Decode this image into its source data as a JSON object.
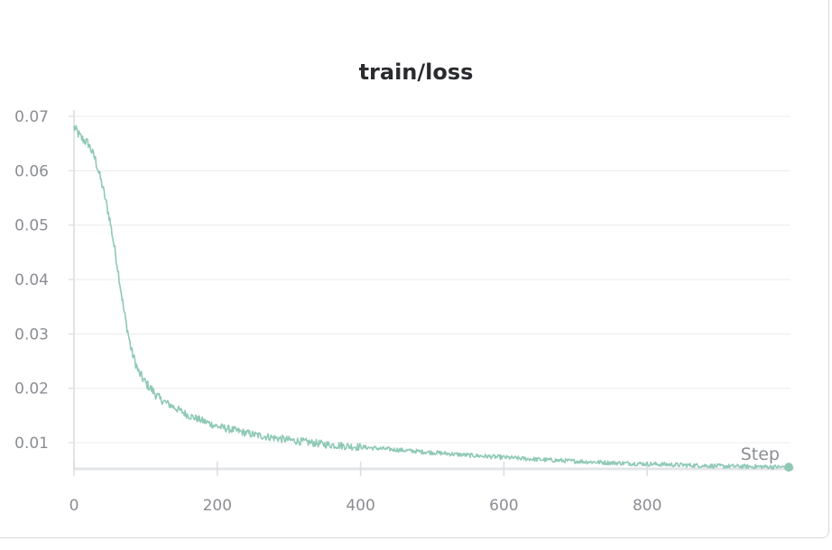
{
  "panel": {
    "title": "train/loss"
  },
  "chart_data": {
    "type": "line",
    "title": "train/loss",
    "xlabel": "Step",
    "ylabel": "",
    "xlim": [
      0,
      1000
    ],
    "ylim": [
      0.005,
      0.07
    ],
    "x_ticks": [
      0,
      200,
      400,
      600,
      800
    ],
    "x_tick_labels": [
      "0",
      "200",
      "400",
      "600",
      "800"
    ],
    "y_ticks": [
      0.01,
      0.02,
      0.03,
      0.04,
      0.05,
      0.06,
      0.07
    ],
    "y_tick_labels": [
      "0.01",
      "0.02",
      "0.03",
      "0.04",
      "0.05",
      "0.06",
      "0.07"
    ],
    "grid": true,
    "series": [
      {
        "color": "#8fc9b6",
        "x": [
          0,
          10,
          20,
          30,
          40,
          50,
          60,
          70,
          80,
          90,
          100,
          120,
          140,
          160,
          180,
          200,
          250,
          300,
          350,
          400,
          450,
          500,
          550,
          600,
          650,
          700,
          750,
          800,
          850,
          900,
          950,
          1000
        ],
        "y": [
          0.068,
          0.066,
          0.065,
          0.062,
          0.057,
          0.051,
          0.043,
          0.034,
          0.027,
          0.023,
          0.021,
          0.018,
          0.0165,
          0.015,
          0.014,
          0.013,
          0.0115,
          0.0105,
          0.0097,
          0.0092,
          0.0087,
          0.0082,
          0.0077,
          0.0073,
          0.0069,
          0.0066,
          0.0063,
          0.0061,
          0.0059,
          0.0057,
          0.0056,
          0.0055
        ]
      }
    ]
  }
}
